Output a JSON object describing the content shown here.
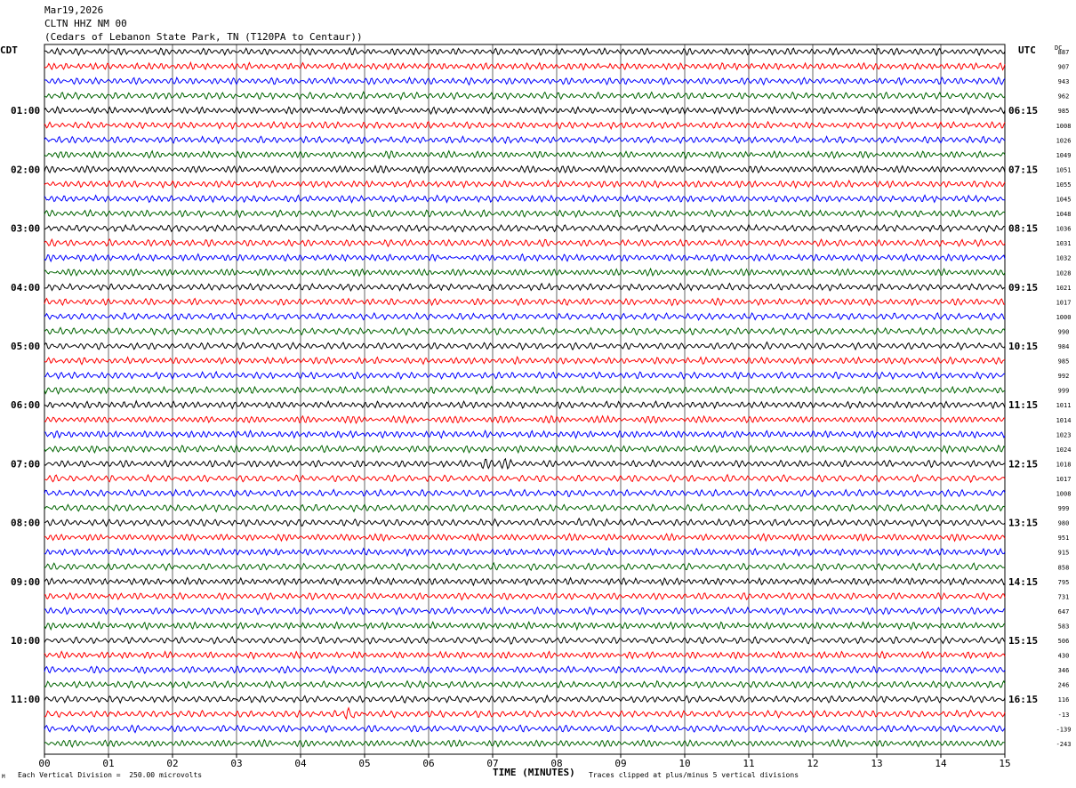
{
  "header": {
    "date": "Mar19,2026",
    "station": "CLTN HHZ NM 00",
    "location": "(Cedars of Lebanon State Park, TN (T120PA to Centaur))"
  },
  "timezones": {
    "left": "CDT",
    "right": "UTC",
    "dc": "DC"
  },
  "footer": {
    "scale": "Each Vertical Division =  250.00 microvolts",
    "xlabel": "TIME (MINUTES)",
    "clip": "Traces clipped at plus/minus 5 vertical divisions",
    "corner": "M"
  },
  "colors": {
    "cycle": [
      "#000000",
      "#ff0000",
      "#0000ff",
      "#006400"
    ],
    "grid": "#000000"
  },
  "chart_data": {
    "type": "line",
    "title": "CLTN HHZ NM 00",
    "xlabel": "TIME (MINUTES)",
    "x_ticks": [
      "00",
      "01",
      "02",
      "03",
      "04",
      "05",
      "06",
      "07",
      "08",
      "09",
      "10",
      "11",
      "12",
      "13",
      "14",
      "15"
    ],
    "xlim": [
      0,
      15
    ],
    "n_traces": 48,
    "minutes_per_trace": 15,
    "left_hour_labels": [
      "01:00",
      "02:00",
      "03:00",
      "04:00",
      "05:00",
      "06:00",
      "07:00",
      "08:00",
      "09:00",
      "10:00",
      "11:00"
    ],
    "right_hour_labels": [
      "06:15",
      "07:15",
      "08:15",
      "09:15",
      "10:15",
      "11:15",
      "12:15",
      "13:15",
      "14:15",
      "15:15",
      "16:15"
    ],
    "dc_offsets": [
      887,
      907,
      943,
      962,
      985,
      1008,
      1026,
      1049,
      1051,
      1055,
      1045,
      1048,
      1036,
      1031,
      1032,
      1028,
      1021,
      1017,
      1000,
      990,
      984,
      985,
      992,
      999,
      1011,
      1014,
      1023,
      1024,
      1018,
      1017,
      1008,
      999,
      980,
      951,
      915,
      858,
      795,
      731,
      647,
      583,
      506,
      430,
      346,
      246,
      116,
      -13,
      -139,
      -243
    ]
  }
}
